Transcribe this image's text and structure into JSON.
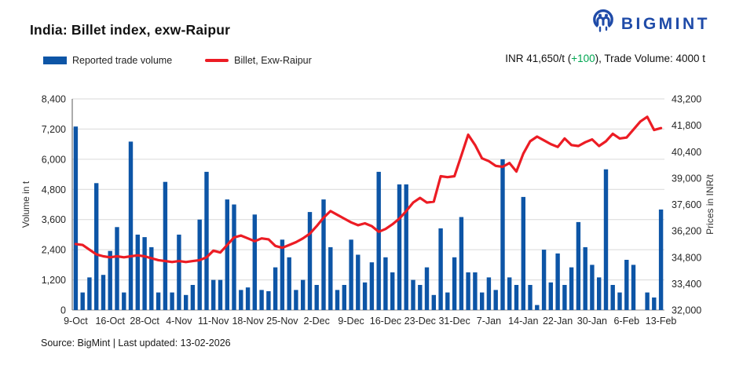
{
  "header": {
    "title": "India: Billet index, exw-Raipur",
    "brand": "BIGMINT"
  },
  "legend": {
    "volume_label": "Reported trade volume",
    "price_label": "Billet, Exw-Raipur"
  },
  "price_summary": {
    "prefix": "INR 41,650/t (",
    "change": "+100",
    "suffix": "), Trade Volume: 4000 t",
    "change_color": "#00A651"
  },
  "footer": {
    "source": "Source: BigMint | Last updated: 13-02-2026"
  },
  "colors": {
    "bar": "#0D55A6",
    "line": "#EC1C24",
    "brand": "#1F4BA8",
    "grid": "#d9d9d9",
    "axis": "#8c8c8c"
  },
  "chart_data": {
    "type": "bar+line",
    "title": "India: Billet index, exw-Raipur",
    "grid": "horizontal",
    "x_tick_every": 5,
    "x_tick_labels": [
      "9-Oct",
      "16-Oct",
      "28-Oct",
      "4-Nov",
      "11-Nov",
      "18-Nov",
      "25-Nov",
      "2-Dec",
      "9-Dec",
      "16-Dec",
      "23-Dec",
      "31-Dec",
      "7-Jan",
      "14-Jan",
      "22-Jan",
      "30-Jan",
      "6-Feb",
      "13-Feb"
    ],
    "left_axis": {
      "title": "Volume in t",
      "min": 0,
      "max": 8400,
      "step": 1200
    },
    "right_axis": {
      "title": "Prices in INR/t",
      "min": 32000,
      "max": 43200,
      "step": 1400
    },
    "series": [
      {
        "name": "Reported trade volume",
        "type": "bar",
        "axis": "left",
        "color": "#0D55A6",
        "values": [
          7300,
          700,
          1300,
          5050,
          1400,
          2350,
          3300,
          700,
          6700,
          3000,
          2900,
          2500,
          700,
          5100,
          700,
          3000,
          600,
          1000,
          3600,
          5500,
          1200,
          1200,
          4400,
          4200,
          800,
          900,
          3800,
          800,
          750,
          1700,
          2800,
          2100,
          800,
          1200,
          3900,
          1000,
          4400,
          2500,
          800,
          1000,
          2800,
          2200,
          1100,
          1900,
          5500,
          2100,
          1500,
          5000,
          5000,
          1200,
          1000,
          1700,
          600,
          3250,
          700,
          2100,
          3700,
          1500,
          1500,
          700,
          1300,
          800,
          6000,
          1300,
          1000,
          4500,
          1000,
          200,
          2400,
          1100,
          2250,
          1000,
          1700,
          3500,
          2500,
          1800,
          1300,
          5600,
          1000,
          700,
          2000,
          1800,
          0,
          700,
          500,
          4000
        ]
      },
      {
        "name": "Billet, Exw-Raipur",
        "type": "line",
        "axis": "right",
        "color": "#EC1C24",
        "values": [
          35500,
          35450,
          35200,
          34950,
          34850,
          34800,
          34850,
          34800,
          34850,
          34900,
          34850,
          34750,
          34650,
          34600,
          34550,
          34600,
          34550,
          34600,
          34650,
          34800,
          35150,
          35050,
          35450,
          35850,
          35950,
          35800,
          35650,
          35800,
          35750,
          35400,
          35300,
          35450,
          35600,
          35800,
          36050,
          36450,
          36900,
          37250,
          37050,
          36850,
          36650,
          36500,
          36600,
          36450,
          36150,
          36300,
          36550,
          36850,
          37250,
          37700,
          37950,
          37700,
          37750,
          39100,
          39050,
          39100,
          40200,
          41300,
          40750,
          40050,
          39900,
          39650,
          39600,
          39800,
          39350,
          40300,
          40950,
          41200,
          41000,
          40800,
          40650,
          41100,
          40750,
          40700,
          40900,
          41050,
          40700,
          40950,
          41350,
          41100,
          41150,
          41570,
          42000,
          42250,
          41550,
          41650
        ]
      }
    ]
  }
}
